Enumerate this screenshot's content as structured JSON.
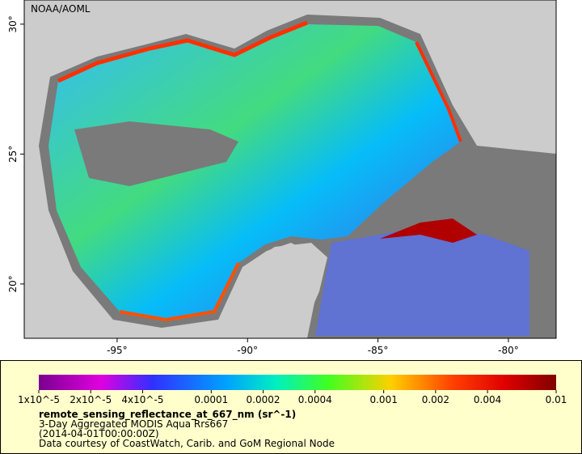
{
  "map": {
    "label": "NOAA/AOML",
    "lonlim": [
      -98.56,
      -78.17
    ],
    "latlim": [
      17.91,
      30.93
    ],
    "lon_ticks": [
      {
        "value": -95,
        "label": "-95°"
      },
      {
        "value": -90,
        "label": "-90°"
      },
      {
        "value": -85,
        "label": "-85°"
      },
      {
        "value": -80,
        "label": "-80°"
      }
    ],
    "lat_ticks": [
      {
        "value": 20,
        "label": "20°"
      },
      {
        "value": 25,
        "label": "25°"
      },
      {
        "value": 30,
        "label": "30°"
      }
    ]
  },
  "colorbar": {
    "scale": "log",
    "lim": [
      1e-05,
      0.01
    ],
    "ticks": [
      {
        "value": 1e-05,
        "label": "1x10^-5"
      },
      {
        "value": 2e-05,
        "label": "2x10^-5"
      },
      {
        "value": 4e-05,
        "label": "4x10^-5"
      },
      0.0001,
      0.0002,
      0.0004,
      0.001,
      0.002,
      0.004,
      0.01
    ]
  },
  "legend": {
    "title": "remote_sensing_reflectance_at_667_nm (sr^-1)",
    "lines": [
      "3-Day Aggregated MODIS Aqua Rrs667",
      "(2014-04-01T00:00:00Z)",
      "Data courtesy of CoastWatch, Carib. and GoM Regional Node"
    ]
  }
}
